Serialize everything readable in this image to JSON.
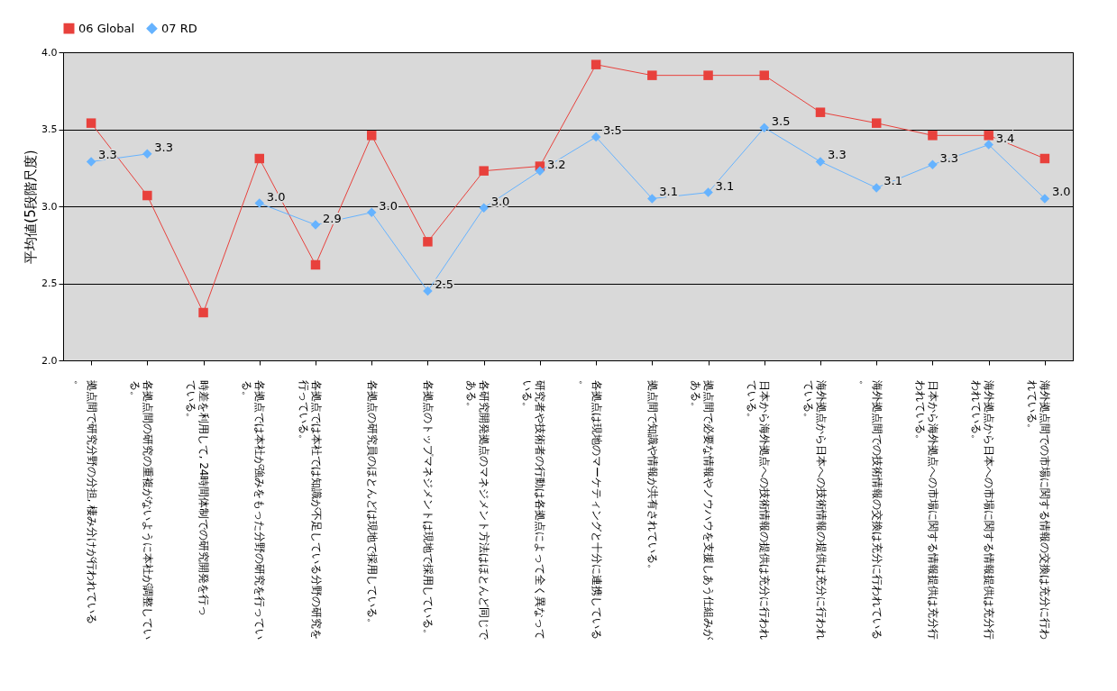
{
  "chart_data": {
    "type": "line",
    "ylabel": "平均値(5段階尺度)",
    "categories": [
      "拠点間で研究分野の分担, 棲み分けが行われている。",
      "各拠点間の研究の重複がないように本社が調整している。",
      "時差を利用して, 24時間体制での研究開発を行っている。",
      "各拠点では本社が強みをもった分野の研究を行っている。",
      "各拠点では本社では知識が不足している分野の研究を行っている。",
      "各拠点の研究員のほとんどは現地で採用している。",
      "各拠点のトップマネジメントは現地で採用している。",
      "各研究開発拠点のマネジメント方法はほとんど同じである。",
      "研究者や技術者の行動は各拠点によって全く異なっている。",
      "各拠点は現地のマーケティングと十分に連携している。",
      "拠点間で知識や情報が共有されている。",
      "拠点間で必要な情報やノウハウを支援しあう仕組みがある。",
      "日本から海外拠点への技術情報の提供は充分に行われている。",
      "海外拠点から日本への技術情報の提供は充分に行われている。",
      "海外拠点間での技術情報の交換は充分に行われている。",
      "日本から海外拠点への市場に関する情報提供は充分行われている。",
      "海外拠点から日本への市場に関する情報提供は充分行われている。",
      "海外拠点間での市場に関する情報の交換は充分に行われている。"
    ],
    "series": [
      {
        "name": "06 Global",
        "color": "#e8413c",
        "marker": "square",
        "values": [
          3.54,
          3.07,
          2.31,
          3.31,
          2.62,
          3.46,
          2.77,
          3.23,
          3.26,
          3.92,
          3.85,
          3.85,
          3.85,
          3.61,
          3.54,
          3.46,
          3.46,
          3.31
        ]
      },
      {
        "name": "07 RD",
        "color": "#66b3ff",
        "marker": "diamond",
        "values": [
          3.29,
          3.34,
          null,
          3.02,
          2.88,
          2.96,
          2.45,
          2.99,
          3.23,
          3.45,
          3.05,
          3.09,
          3.51,
          3.29,
          3.12,
          3.27,
          3.4,
          3.05
        ],
        "value_labels": [
          "3.3",
          "3.3",
          null,
          "3.0",
          "2.9",
          "3.0",
          "2.5",
          "3.0",
          "3.2",
          "3.5",
          "3.1",
          "3.1",
          "3.5",
          "3.3",
          "3.1",
          "3.3",
          "3.4",
          "3.0"
        ]
      }
    ],
    "ylim": [
      2.0,
      4.0
    ],
    "yticks": [
      {
        "value": 2.0,
        "label": "2.0"
      },
      {
        "value": 2.5,
        "label": "2.5"
      },
      {
        "value": 3.0,
        "label": "3.0"
      },
      {
        "value": 3.5,
        "label": "3.5"
      },
      {
        "value": 4.0,
        "label": "4.0"
      }
    ],
    "grid": "y",
    "legend": "top"
  }
}
